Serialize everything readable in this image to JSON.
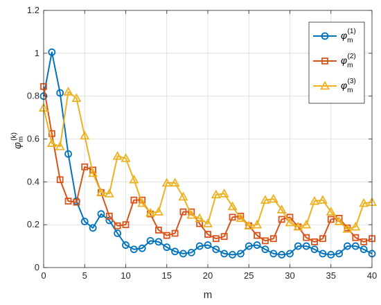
{
  "chart_data": {
    "type": "line",
    "xlabel": "m",
    "ylabel": {
      "symbol": "φ",
      "subscript": "m",
      "superscript": "(k)"
    },
    "xlim": [
      0,
      40
    ],
    "ylim": [
      0,
      1.2
    ],
    "xticks": [
      0,
      5,
      10,
      15,
      20,
      25,
      30,
      35,
      40
    ],
    "yticks": [
      0,
      0.2,
      0.4,
      0.6,
      0.8,
      1,
      1.2
    ],
    "xtick_labels": [
      "0",
      "5",
      "10",
      "15",
      "20",
      "25",
      "30",
      "35",
      "40"
    ],
    "ytick_labels": [
      "0",
      "0.2",
      "0.4",
      "0.6",
      "0.8",
      "1",
      "1.2"
    ],
    "grid": true,
    "legend_position": "top-right",
    "x": [
      0,
      1,
      2,
      3,
      4,
      5,
      6,
      7,
      8,
      9,
      10,
      11,
      12,
      13,
      14,
      15,
      16,
      17,
      18,
      19,
      20,
      21,
      22,
      23,
      24,
      25,
      26,
      27,
      28,
      29,
      30,
      31,
      32,
      33,
      34,
      35,
      36,
      37,
      38,
      39,
      40
    ],
    "series": [
      {
        "name": "φ_m^(1)",
        "legend": {
          "symbol": "φ",
          "subscript": "m",
          "superscript": "(1)"
        },
        "color": "#0072BD",
        "marker": "circle",
        "values": [
          0.8,
          1.005,
          0.815,
          0.53,
          0.31,
          0.215,
          0.185,
          0.25,
          0.22,
          0.16,
          0.105,
          0.085,
          0.09,
          0.125,
          0.12,
          0.095,
          0.075,
          0.065,
          0.07,
          0.1,
          0.105,
          0.085,
          0.065,
          0.06,
          0.065,
          0.1,
          0.105,
          0.085,
          0.065,
          0.06,
          0.065,
          0.1,
          0.1,
          0.085,
          0.065,
          0.06,
          0.065,
          0.1,
          0.1,
          0.085,
          0.065
        ]
      },
      {
        "name": "φ_m^(2)",
        "legend": {
          "symbol": "φ",
          "subscript": "m",
          "superscript": "(2)"
        },
        "color": "#D95319",
        "marker": "square",
        "values": [
          0.845,
          0.625,
          0.41,
          0.31,
          0.305,
          0.47,
          0.455,
          0.35,
          0.24,
          0.195,
          0.2,
          0.315,
          0.315,
          0.25,
          0.175,
          0.15,
          0.16,
          0.26,
          0.26,
          0.205,
          0.155,
          0.135,
          0.145,
          0.235,
          0.24,
          0.195,
          0.15,
          0.125,
          0.135,
          0.225,
          0.235,
          0.19,
          0.14,
          0.12,
          0.135,
          0.225,
          0.23,
          0.185,
          0.14,
          0.12,
          0.135
        ]
      },
      {
        "name": "φ_m^(3)",
        "legend": {
          "symbol": "φ",
          "subscript": "m",
          "superscript": "(3)"
        },
        "color": "#EDB120",
        "marker": "triangle",
        "values": [
          0.745,
          0.58,
          0.565,
          0.82,
          0.79,
          0.615,
          0.44,
          0.35,
          0.345,
          0.52,
          0.51,
          0.41,
          0.3,
          0.255,
          0.26,
          0.395,
          0.395,
          0.33,
          0.245,
          0.23,
          0.205,
          0.34,
          0.345,
          0.285,
          0.23,
          0.195,
          0.2,
          0.315,
          0.32,
          0.27,
          0.21,
          0.19,
          0.2,
          0.31,
          0.315,
          0.26,
          0.215,
          0.18,
          0.19,
          0.3,
          0.305
        ]
      }
    ]
  }
}
